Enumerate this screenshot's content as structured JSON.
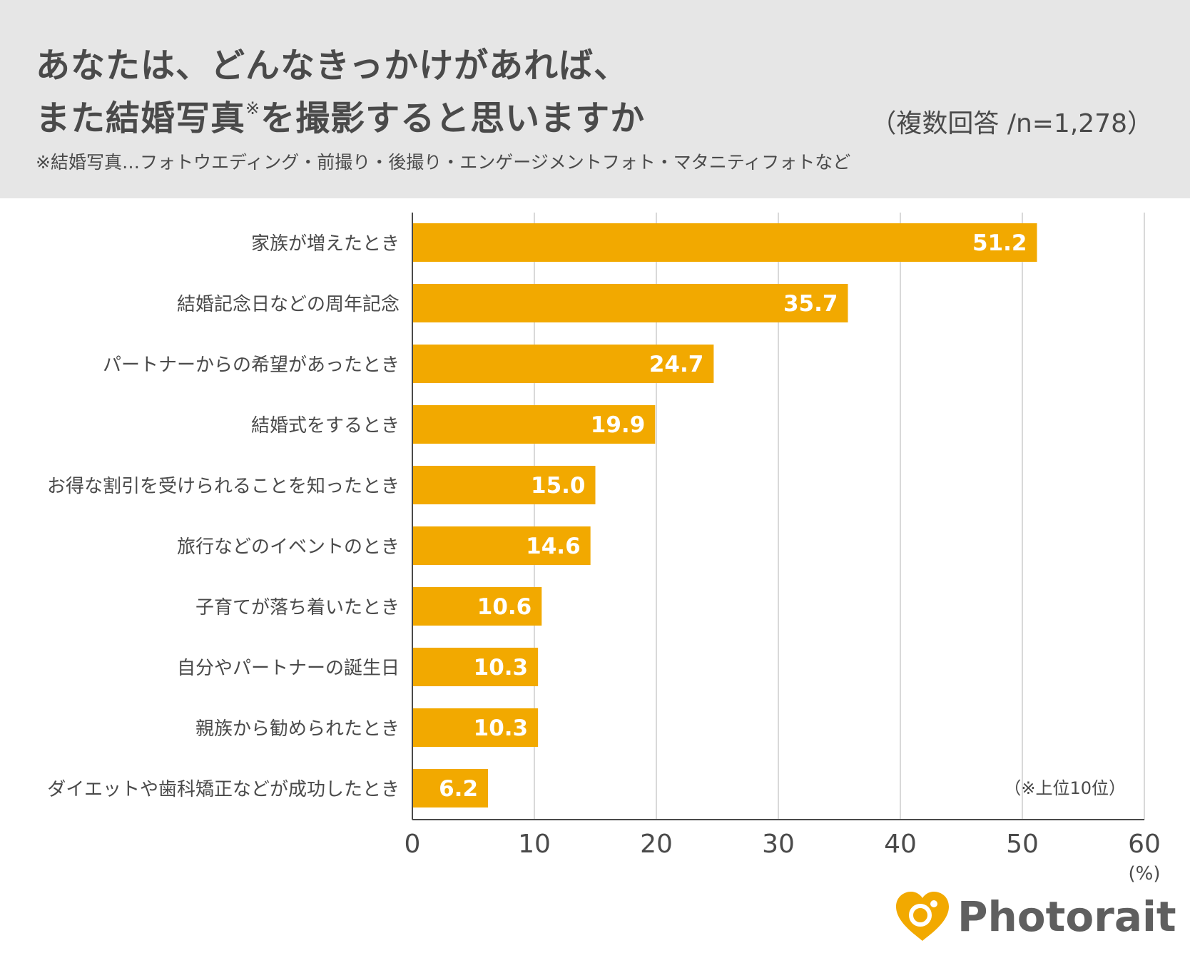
{
  "header": {
    "title_line1": "あなたは、どんなきっかけがあれば、",
    "title_line2": "また結婚写真",
    "title_mark": "※",
    "title_line2_rest": "を撮影すると思いますか",
    "sample": "（複数回答 /n=1,278）",
    "footnote": "※結婚写真…フォトウエディング・前撮り・後撮り・エンゲージメントフォト・マタニティフォトなど"
  },
  "chart_data": {
    "type": "bar",
    "orientation": "horizontal",
    "categories": [
      "家族が増えたとき",
      "結婚記念日などの周年記念",
      "パートナーからの希望があったとき",
      "結婚式をするとき",
      "お得な割引を受けられることを知ったとき",
      "旅行などのイベントのとき",
      "子育てが落ち着いたとき",
      "自分やパートナーの誕生日",
      "親族から勧められたとき",
      "ダイエットや歯科矯正などが成功したとき"
    ],
    "values": [
      51.2,
      35.7,
      24.7,
      19.9,
      15.0,
      14.6,
      10.6,
      10.3,
      10.3,
      6.2
    ],
    "value_labels": [
      "51.2",
      "35.7",
      "24.7",
      "19.9",
      "15.0",
      "14.6",
      "10.6",
      "10.3",
      "10.3",
      "6.2"
    ],
    "xlim": [
      0,
      60
    ],
    "xticks": [
      0,
      10,
      20,
      30,
      40,
      50,
      60
    ],
    "xtick_labels": [
      "0",
      "10",
      "20",
      "30",
      "40",
      "50",
      "60"
    ],
    "unit": "(%)",
    "note": "（※上位10位）",
    "grid": true,
    "bar_color": "#F2A900",
    "grid_color": "#d9d9d9",
    "axis_color": "#4a4a4a"
  },
  "logo": {
    "text": "Photorait",
    "color": "#F2A900"
  }
}
